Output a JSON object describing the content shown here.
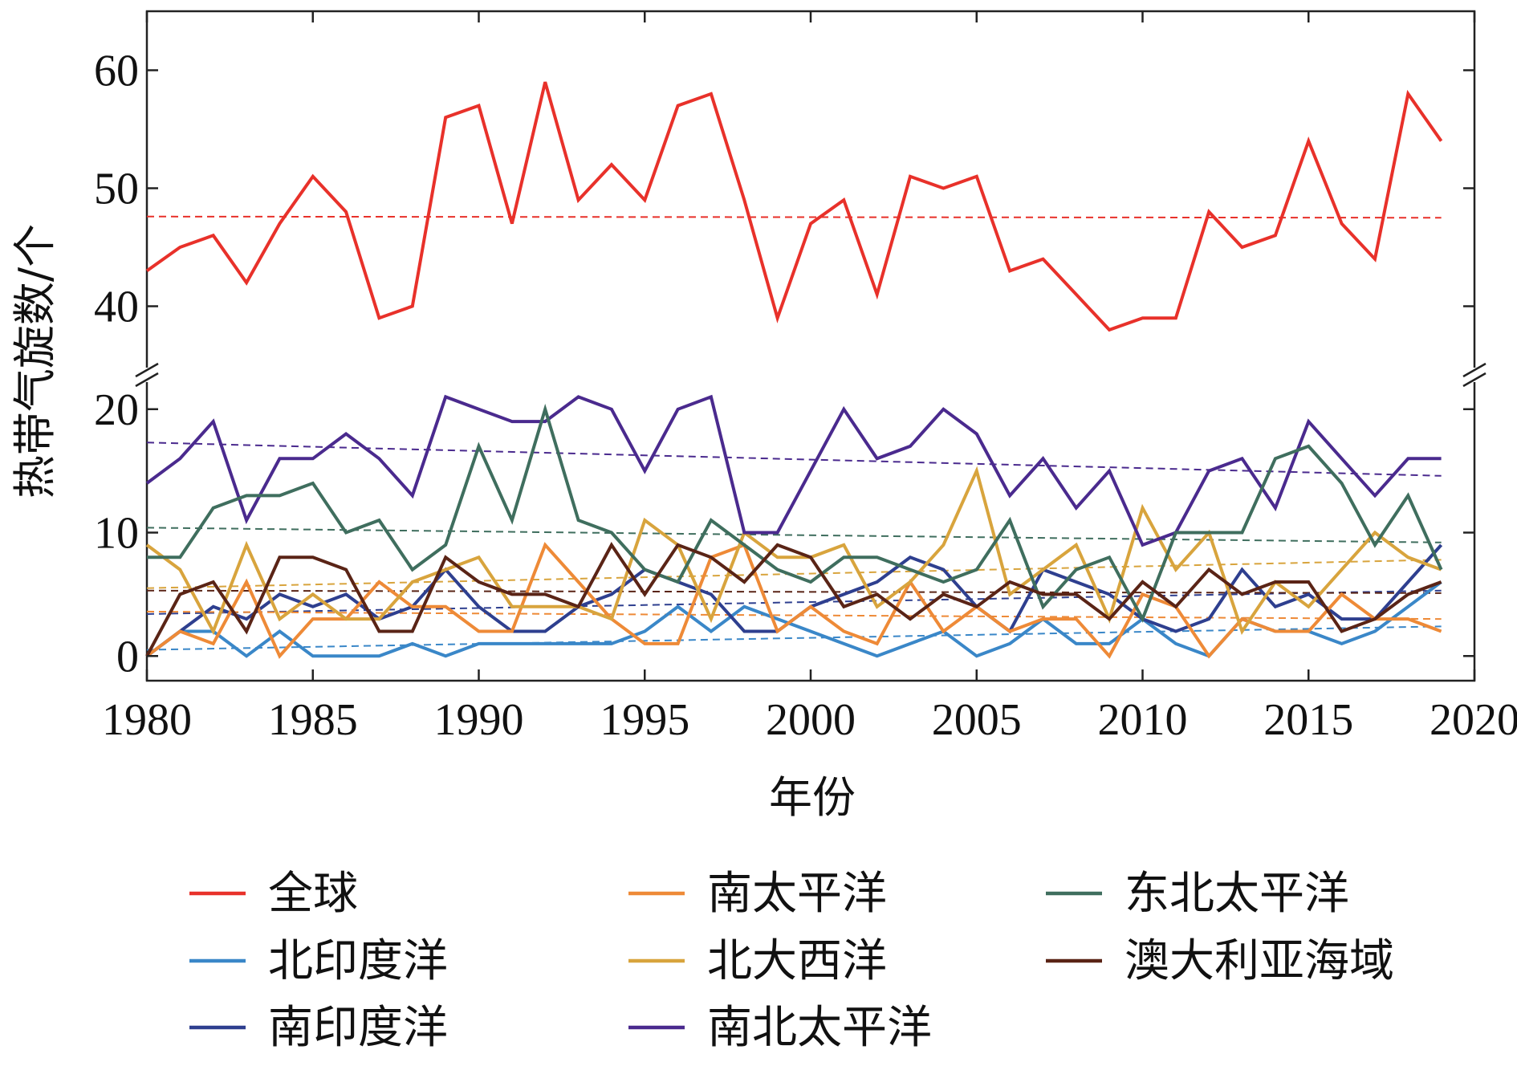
{
  "chart_data": {
    "type": "line",
    "xlabel": "年份",
    "ylabel": "热带气旋数/个",
    "xlim": [
      1980,
      2020
    ],
    "x_ticks": [
      1980,
      1985,
      1990,
      1995,
      2000,
      2005,
      2010,
      2015,
      2020
    ],
    "y_axis_break": true,
    "upper_panel": {
      "ylim": [
        35,
        65
      ],
      "y_ticks": [
        40,
        50,
        60
      ]
    },
    "lower_panel": {
      "ylim": [
        -2,
        22
      ],
      "y_ticks": [
        0,
        10,
        20
      ]
    },
    "trend_lines": "dashed linear trend per series",
    "legend": {
      "placement": "bottom",
      "columns": 3
    },
    "x": [
      1980,
      1981,
      1982,
      1983,
      1984,
      1985,
      1986,
      1987,
      1988,
      1989,
      1990,
      1991,
      1992,
      1993,
      1994,
      1995,
      1996,
      1997,
      1998,
      1999,
      2000,
      2001,
      2002,
      2003,
      2004,
      2005,
      2006,
      2007,
      2008,
      2009,
      2010,
      2011,
      2012,
      2013,
      2014,
      2015,
      2016,
      2017,
      2018,
      2019
    ],
    "series": [
      {
        "name": "全球",
        "color": "#e8312a",
        "panel": "upper",
        "trend": [
          47.6,
          47.5
        ],
        "values": [
          43,
          45,
          46,
          42,
          47,
          51,
          48,
          39,
          40,
          56,
          57,
          47,
          59,
          49,
          52,
          49,
          57,
          58,
          49,
          39,
          47,
          49,
          41,
          51,
          50,
          51,
          43,
          44,
          41,
          38,
          39,
          39,
          48,
          45,
          46,
          54,
          47,
          44,
          58,
          54
        ]
      },
      {
        "name": "北印度洋",
        "color": "#3a87c8",
        "panel": "lower",
        "trend": [
          0.5,
          2.4
        ],
        "values": [
          0,
          2,
          2,
          0,
          2,
          0,
          0,
          0,
          1,
          0,
          1,
          1,
          1,
          1,
          1,
          2,
          4,
          2,
          4,
          3,
          2,
          1,
          0,
          1,
          2,
          0,
          1,
          3,
          1,
          1,
          3,
          1,
          0,
          3,
          2,
          2,
          1,
          2,
          4,
          6
        ]
      },
      {
        "name": "南印度洋",
        "color": "#2e3f8f",
        "panel": "lower",
        "trend": [
          3.4,
          5.3
        ],
        "values": [
          0,
          2,
          4,
          3,
          5,
          4,
          5,
          3,
          4,
          7,
          4,
          2,
          2,
          4,
          5,
          7,
          6,
          5,
          2,
          2,
          4,
          5,
          6,
          8,
          7,
          4,
          2,
          7,
          6,
          5,
          3,
          2,
          3,
          7,
          4,
          5,
          3,
          3,
          6,
          9
        ]
      },
      {
        "name": "南太平洋",
        "color": "#ee8a37",
        "panel": "lower",
        "trend": [
          3.6,
          3.0
        ],
        "values": [
          0,
          2,
          1,
          6,
          0,
          3,
          3,
          6,
          4,
          4,
          2,
          2,
          9,
          6,
          3,
          1,
          1,
          8,
          9,
          2,
          4,
          2,
          1,
          6,
          2,
          4,
          2,
          3,
          3,
          0,
          5,
          4,
          0,
          3,
          2,
          2,
          5,
          3,
          3,
          2
        ]
      },
      {
        "name": "北大西洋",
        "color": "#d8a43d",
        "panel": "lower",
        "trend": [
          5.5,
          7.8
        ],
        "values": [
          9,
          7,
          2,
          9,
          3,
          5,
          3,
          3,
          6,
          7,
          8,
          4,
          4,
          4,
          3,
          11,
          9,
          3,
          10,
          8,
          8,
          9,
          4,
          6,
          9,
          15,
          5,
          7,
          9,
          3,
          12,
          7,
          10,
          2,
          6,
          4,
          7,
          10,
          8,
          7
        ]
      },
      {
        "name": "南北太平洋",
        "color": "#4a2a8e",
        "panel": "lower",
        "trend": [
          17.3,
          14.6
        ],
        "values": [
          14,
          16,
          19,
          11,
          16,
          16,
          18,
          16,
          13,
          21,
          20,
          19,
          19,
          21,
          20,
          15,
          20,
          21,
          10,
          10,
          15,
          20,
          16,
          17,
          20,
          18,
          13,
          16,
          12,
          15,
          9,
          10,
          15,
          16,
          12,
          19,
          16,
          13,
          16,
          16
        ]
      },
      {
        "name": "东北太平洋",
        "color": "#3f6e5e",
        "panel": "lower",
        "trend": [
          10.4,
          9.2
        ],
        "values": [
          8,
          8,
          12,
          13,
          13,
          14,
          10,
          11,
          7,
          9,
          17,
          11,
          20,
          11,
          10,
          7,
          6,
          11,
          9,
          7,
          6,
          8,
          8,
          7,
          6,
          7,
          11,
          4,
          7,
          8,
          3,
          10,
          10,
          10,
          16,
          17,
          14,
          9,
          13,
          7
        ]
      },
      {
        "name": "澳大利亚海域",
        "color": "#5a2416",
        "panel": "lower",
        "trend": [
          5.3,
          5.1
        ],
        "values": [
          0,
          5,
          6,
          2,
          8,
          8,
          7,
          2,
          2,
          8,
          6,
          5,
          5,
          4,
          9,
          5,
          9,
          8,
          6,
          9,
          8,
          4,
          5,
          3,
          5,
          4,
          6,
          5,
          5,
          3,
          6,
          4,
          7,
          5,
          6,
          6,
          2,
          3,
          5,
          6
        ]
      }
    ]
  }
}
